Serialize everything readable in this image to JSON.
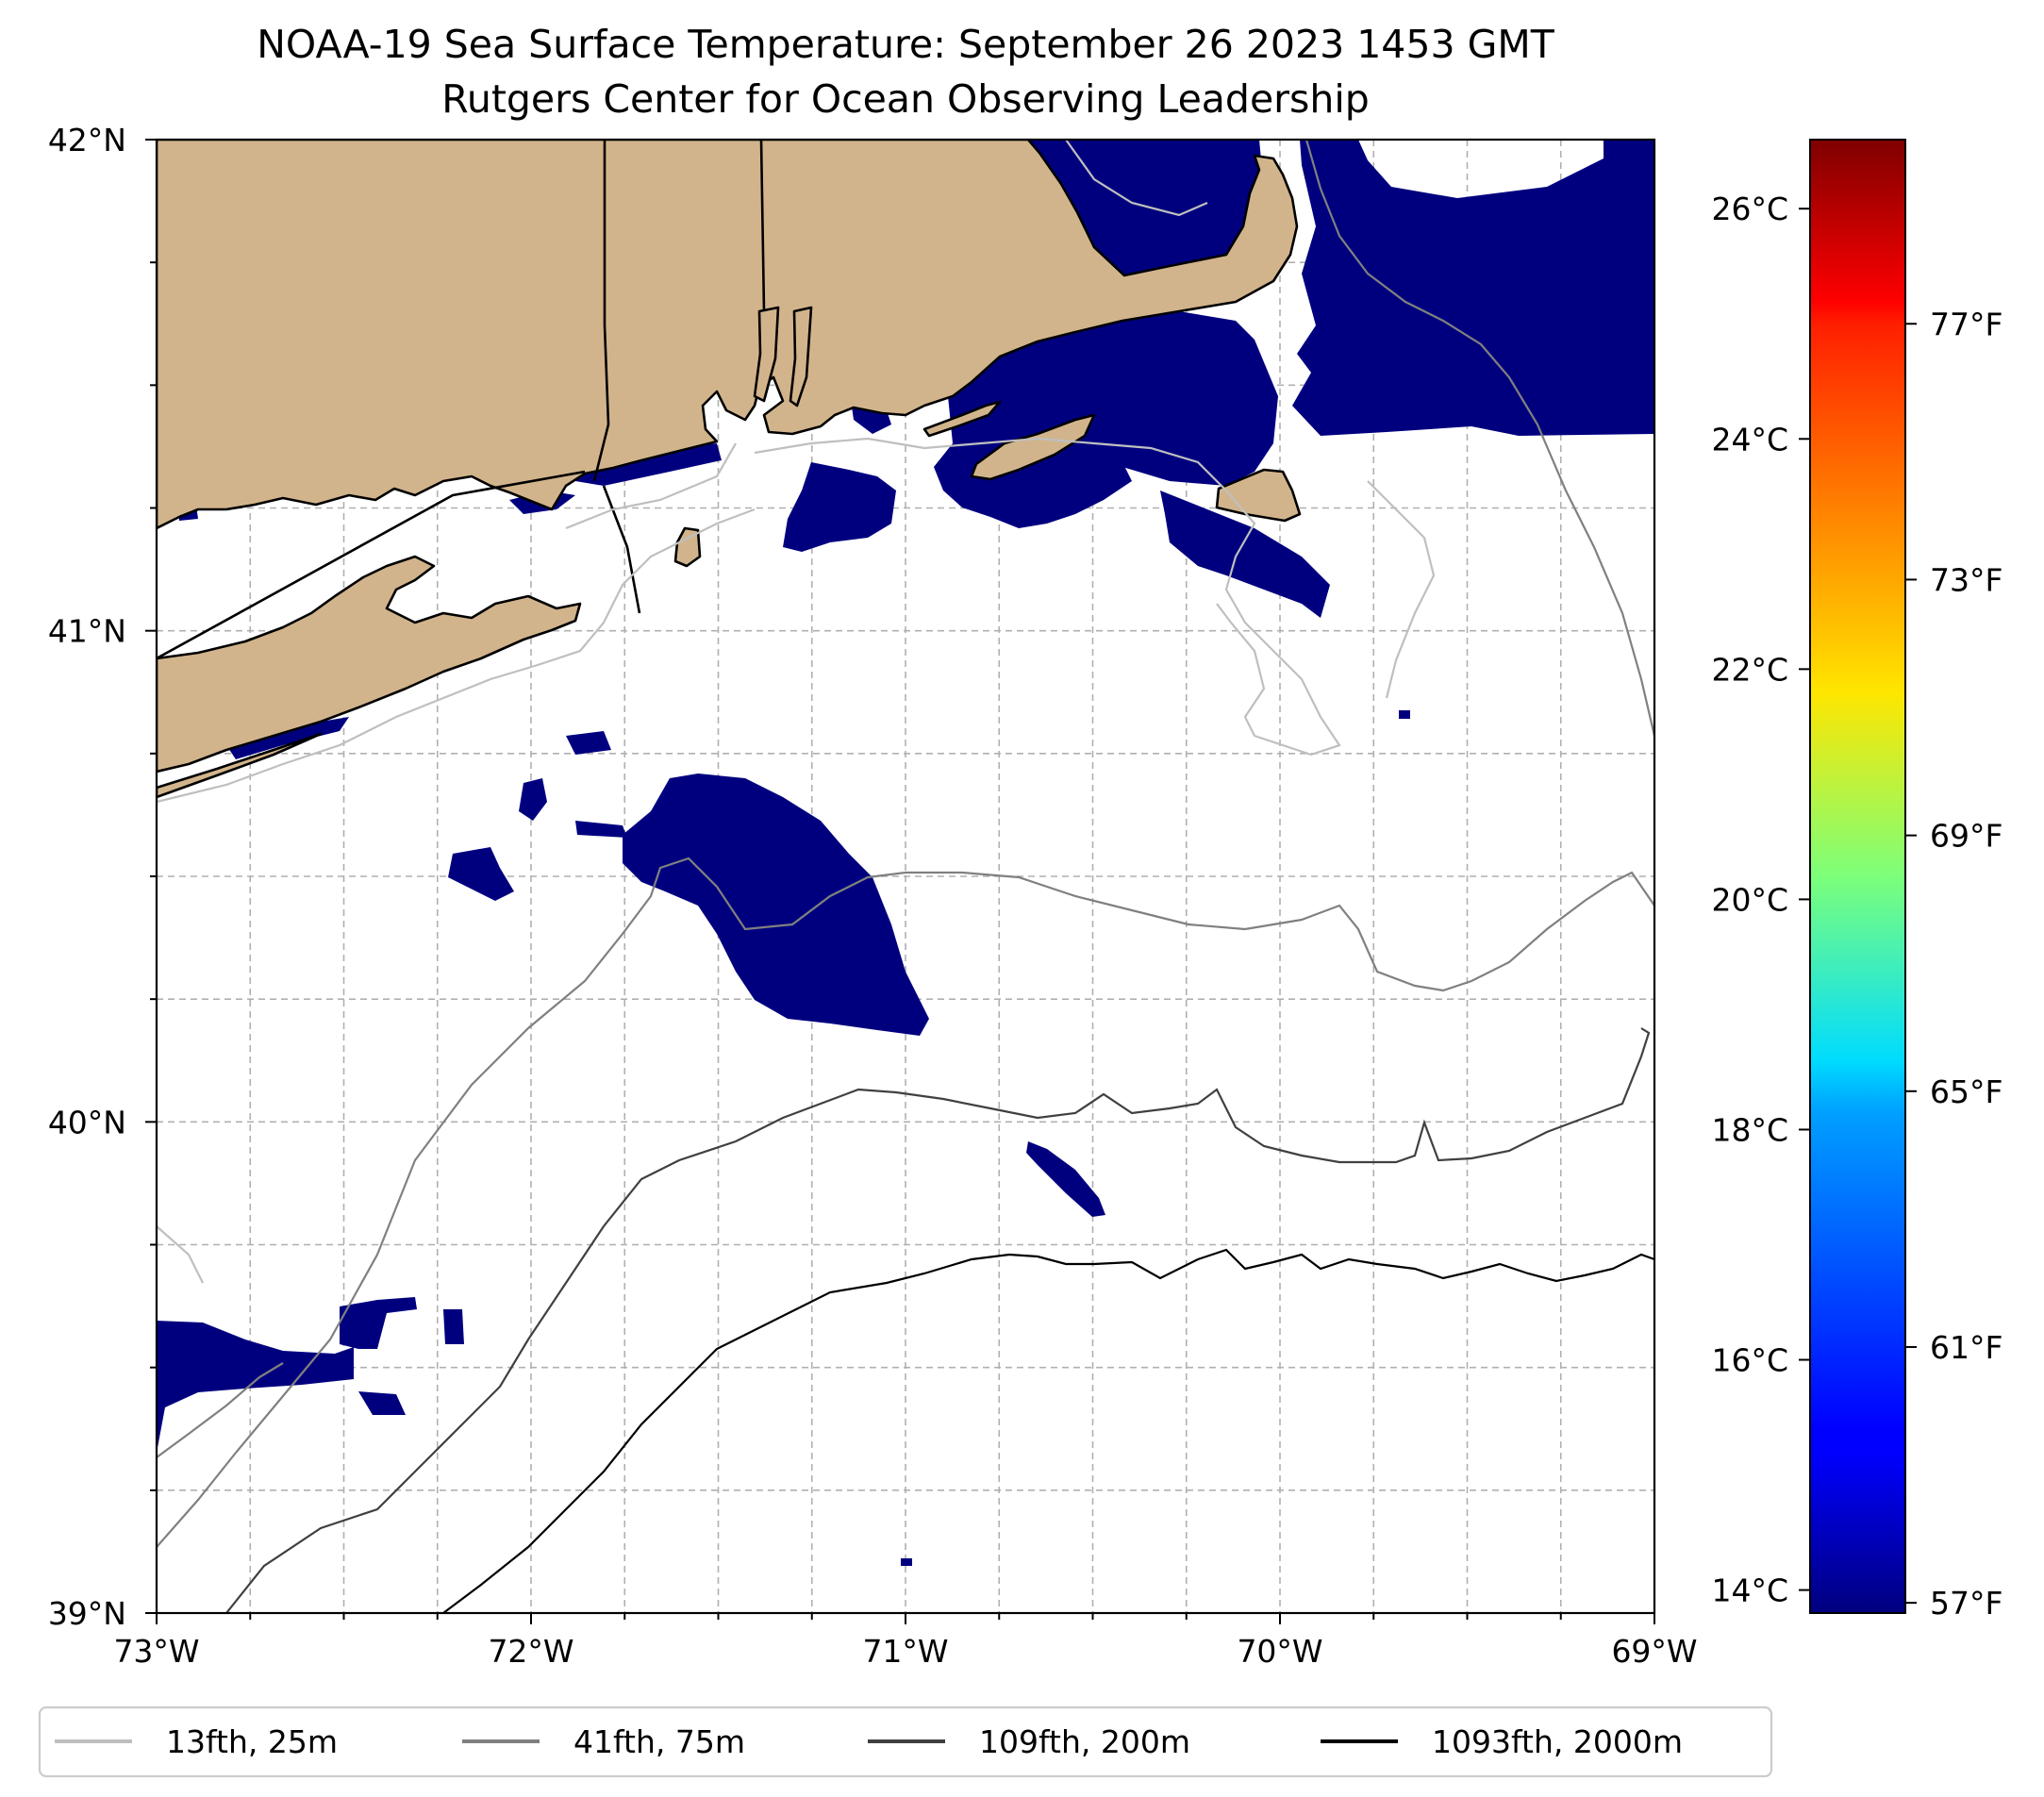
{
  "title": "NOAA-19 Sea Surface Temperature: September 26 2023 1453 GMT",
  "subtitle": "Rutgers Center for Ocean Observing Leadership",
  "map": {
    "lon_range": [
      -73,
      -69
    ],
    "lat_range": [
      39,
      42
    ],
    "lon_ticks": [
      {
        "value": -73,
        "label": "73°W"
      },
      {
        "value": -72,
        "label": "72°W"
      },
      {
        "value": -71,
        "label": "71°W"
      },
      {
        "value": -70,
        "label": "70°W"
      },
      {
        "value": -69,
        "label": "69°W"
      }
    ],
    "lat_ticks": [
      {
        "value": 42,
        "label": "42°N"
      },
      {
        "value": 41,
        "label": "41°N"
      },
      {
        "value": 40,
        "label": "40°N"
      },
      {
        "value": 39,
        "label": "39°N"
      }
    ],
    "grid": "dashed",
    "land_color": "#d2b48c",
    "sst_color": "#00007f"
  },
  "colorbar": {
    "colormap": "jet",
    "celsius_range": [
      13.8,
      26.6
    ],
    "celsius_ticks": [
      {
        "value": 26,
        "label": "26°C"
      },
      {
        "value": 24,
        "label": "24°C"
      },
      {
        "value": 22,
        "label": "22°C"
      },
      {
        "value": 20,
        "label": "20°C"
      },
      {
        "value": 18,
        "label": "18°C"
      },
      {
        "value": 16,
        "label": "16°C"
      },
      {
        "value": 14,
        "label": "14°C"
      }
    ],
    "fahrenheit_ticks": [
      {
        "value": 77,
        "label": "77°F"
      },
      {
        "value": 73,
        "label": "73°F"
      },
      {
        "value": 69,
        "label": "69°F"
      },
      {
        "value": 65,
        "label": "65°F"
      },
      {
        "value": 61,
        "label": "61°F"
      },
      {
        "value": 57,
        "label": "57°F"
      }
    ]
  },
  "legend": {
    "placement": "bottom",
    "items": [
      {
        "label": "13fth, 25m",
        "color": "#bfbfbf"
      },
      {
        "label": "41fth, 75m",
        "color": "#808080"
      },
      {
        "label": "109fth, 200m",
        "color": "#404040"
      },
      {
        "label": "1093fth, 2000m",
        "color": "#000000"
      }
    ]
  }
}
